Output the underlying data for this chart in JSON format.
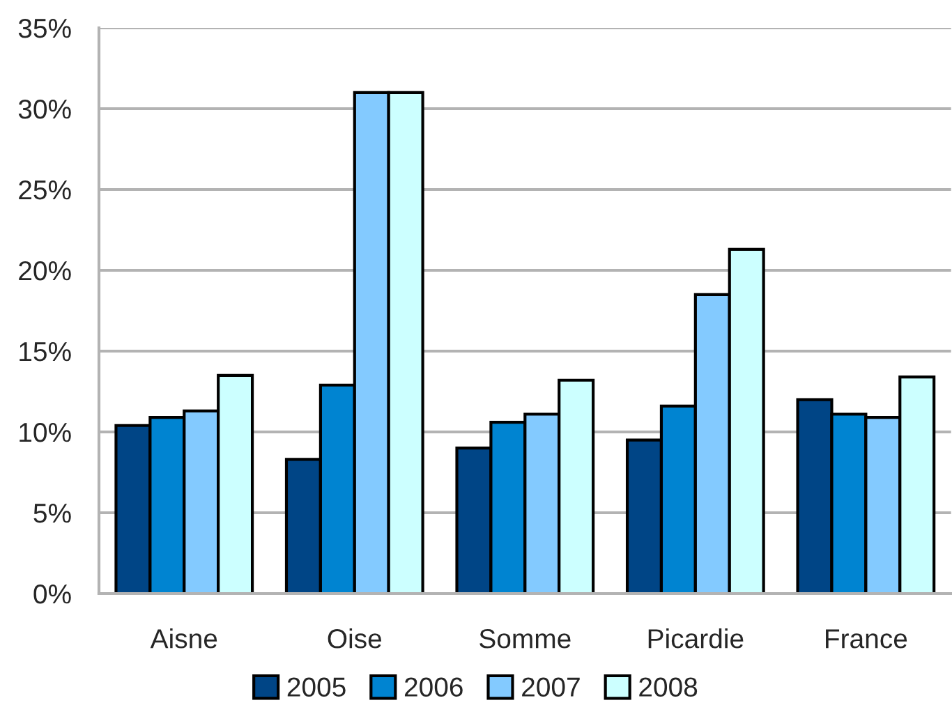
{
  "chart_data": {
    "type": "bar",
    "categories": [
      "Aisne",
      "Oise",
      "Somme",
      "Picardie",
      "France"
    ],
    "series": [
      {
        "name": "2005",
        "color": "#004586",
        "values": [
          10.4,
          8.3,
          9.0,
          9.5,
          12.0
        ]
      },
      {
        "name": "2006",
        "color": "#0084d1",
        "values": [
          10.9,
          12.9,
          10.6,
          11.6,
          11.1
        ]
      },
      {
        "name": "2007",
        "color": "#83caff",
        "values": [
          11.3,
          31.0,
          11.1,
          18.5,
          10.9
        ]
      },
      {
        "name": "2008",
        "color": "#ccffff",
        "values": [
          13.5,
          31.0,
          13.2,
          21.3,
          13.4
        ]
      }
    ],
    "ylim": [
      0,
      35
    ],
    "yticks": [
      {
        "value": 0,
        "label": "0%"
      },
      {
        "value": 5,
        "label": "5%"
      },
      {
        "value": 10,
        "label": "10%"
      },
      {
        "value": 15,
        "label": "15%"
      },
      {
        "value": 20,
        "label": "20%"
      },
      {
        "value": 25,
        "label": "25%"
      },
      {
        "value": 30,
        "label": "30%"
      },
      {
        "value": 35,
        "label": "35%"
      }
    ],
    "grid": "y",
    "legend": "bottom"
  }
}
